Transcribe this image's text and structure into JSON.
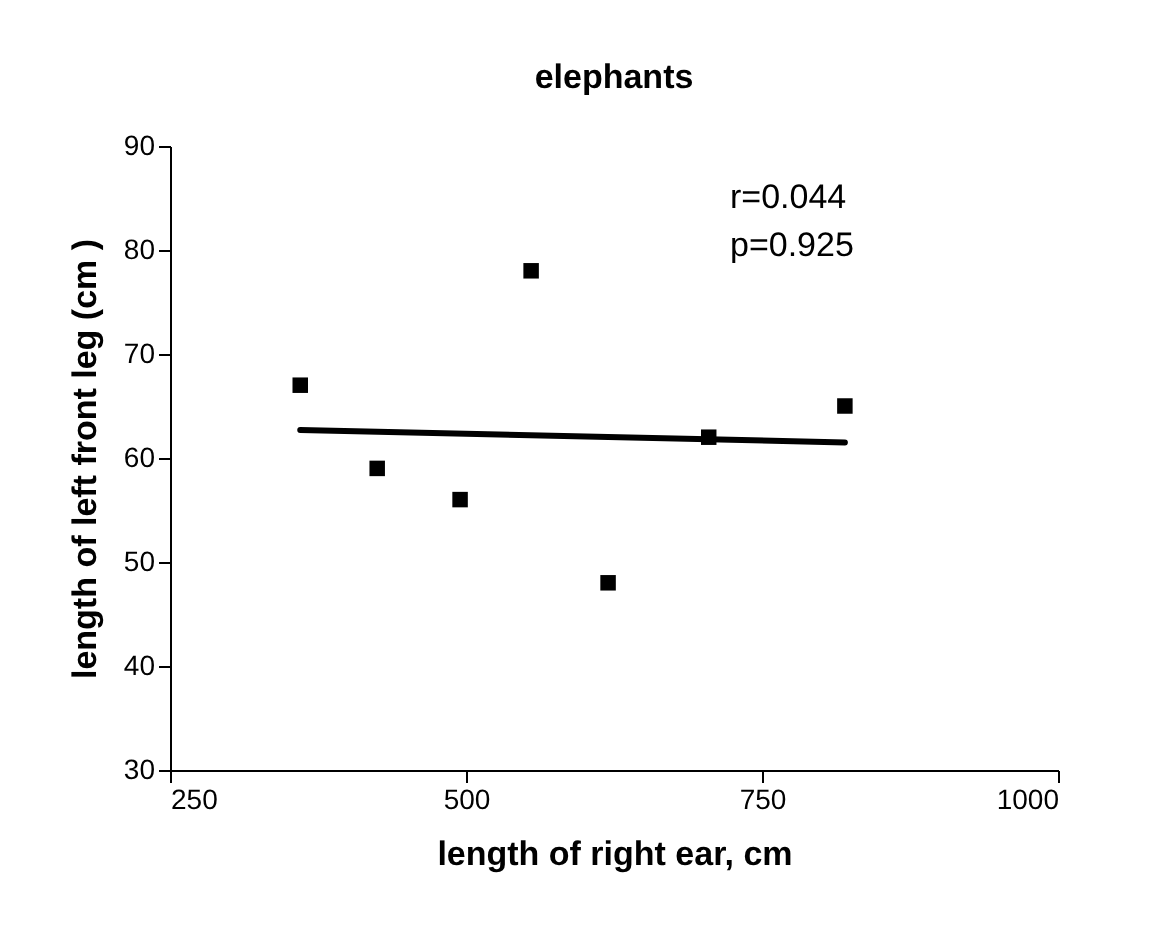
{
  "chart_data": {
    "type": "scatter",
    "title": "elephants",
    "xlabel": "length of right ear, cm",
    "ylabel": "length of left front leg (cm )",
    "series": [
      {
        "color": "#000000",
        "marker": "square",
        "x": [
          360,
          425,
          495,
          555,
          620,
          705,
          820
        ],
        "values": [
          67,
          59,
          56,
          78,
          48,
          62,
          65
        ]
      },
      {
        "type": "line",
        "color": "#000000",
        "line_style": "solid",
        "marker": "none",
        "x": [
          360,
          820
        ],
        "values": [
          62.7,
          61.5
        ]
      }
    ],
    "xlim": [
      250,
      1000
    ],
    "xticks": [
      250,
      500,
      750,
      1000
    ],
    "ylim": [
      30,
      90
    ],
    "yticks": [
      30,
      40,
      50,
      60,
      70,
      80,
      90
    ],
    "grid": false,
    "annotations": [
      "r=0.044",
      "p=0.925"
    ]
  }
}
